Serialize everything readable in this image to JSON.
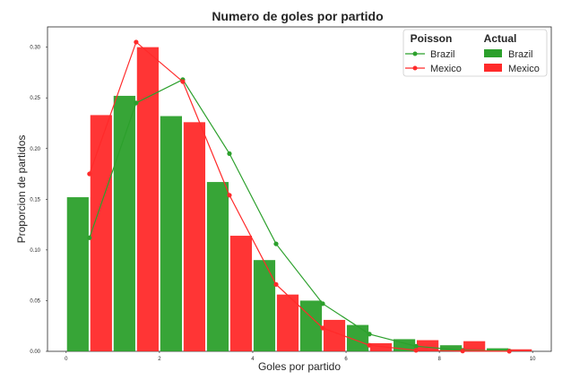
{
  "chart_data": {
    "type": "bar",
    "title": "Numero de goles por partido",
    "xlabel": "Goles por partido",
    "ylabel": "Proporcion de partidos",
    "xlim": [
      -0.4,
      10.4
    ],
    "ylim": [
      0,
      0.32
    ],
    "xticks": [
      0,
      2,
      4,
      6,
      8,
      10
    ],
    "xtick_labels": [
      "0",
      "2",
      "4",
      "6",
      "8",
      "10"
    ],
    "yticks": [
      0.0,
      0.05,
      0.1,
      0.15,
      0.2,
      0.25,
      0.3
    ],
    "ytick_labels": [
      "0.00",
      "0.05",
      "0.10",
      "0.15",
      "0.20",
      "0.25",
      "0.30"
    ],
    "grid": false,
    "legend_position": "top-right",
    "legend_headers": {
      "poisson": "Poisson",
      "actual": "Actual"
    },
    "bar_series": [
      {
        "name": "Brazil",
        "color": "#2ca02c",
        "x": [
          0.25,
          1.25,
          2.25,
          3.25,
          4.25,
          5.25,
          6.25,
          7.25,
          8.25,
          9.25
        ],
        "values": [
          0.152,
          0.252,
          0.232,
          0.167,
          0.09,
          0.05,
          0.026,
          0.012,
          0.006,
          0.003
        ]
      },
      {
        "name": "Mexico",
        "color": "#ff2a2a",
        "x": [
          0.75,
          1.75,
          2.75,
          3.75,
          4.75,
          5.75,
          6.75,
          7.75,
          8.75,
          9.75
        ],
        "values": [
          0.233,
          0.3,
          0.226,
          0.114,
          0.056,
          0.031,
          0.008,
          0.011,
          0.01,
          0.002
        ]
      }
    ],
    "line_series": [
      {
        "name": "Brazil",
        "color": "#2ca02c",
        "x": [
          0.5,
          1.5,
          2.5,
          3.5,
          4.5,
          5.5,
          6.5,
          7.5,
          8.5,
          9.5
        ],
        "values": [
          0.112,
          0.245,
          0.268,
          0.195,
          0.106,
          0.047,
          0.017,
          0.005,
          0.001,
          0.0004
        ]
      },
      {
        "name": "Mexico",
        "color": "#ff2a2a",
        "x": [
          0.5,
          1.5,
          2.5,
          3.5,
          4.5,
          5.5,
          6.5,
          7.5,
          8.5,
          9.5
        ],
        "values": [
          0.175,
          0.305,
          0.266,
          0.154,
          0.066,
          0.023,
          0.006,
          0.001,
          0.0003,
          0.0001
        ]
      }
    ]
  }
}
